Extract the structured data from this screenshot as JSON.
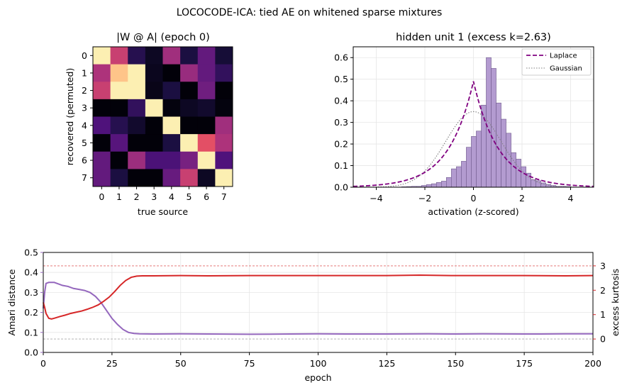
{
  "suptitle": "LOCOCODE-ICA: tied AE on whitened sparse mixtures",
  "colors": {
    "amari": "#9467bd",
    "kurtosis": "#d62728",
    "laplace": "#800080",
    "gaussian": "#7f7f7f",
    "hist_fill": "#b39bd0",
    "hist_edge": "#6f5a8c",
    "kurt_ref": "#d62728",
    "amari_ref": "#aaaaaa"
  },
  "chart_data": [
    {
      "type": "heatmap",
      "title": "|W @ A|  (epoch 0)",
      "xlabel": "true source",
      "ylabel": "recovered (permuted)",
      "x_ticks": [
        "0",
        "1",
        "2",
        "3",
        "4",
        "5",
        "6",
        "7"
      ],
      "y_ticks": [
        "0",
        "1",
        "2",
        "3",
        "4",
        "5",
        "6",
        "7"
      ],
      "colormap": "magma",
      "values": [
        [
          0.97,
          0.55,
          0.15,
          0.06,
          0.45,
          0.12,
          0.3,
          0.1
        ],
        [
          0.48,
          0.88,
          0.97,
          0.05,
          0.01,
          0.43,
          0.3,
          0.18
        ],
        [
          0.55,
          0.97,
          0.97,
          0.04,
          0.12,
          0.01,
          0.33,
          0.01
        ],
        [
          0.01,
          0.01,
          0.18,
          0.97,
          0.02,
          0.06,
          0.08,
          0.02
        ],
        [
          0.25,
          0.15,
          0.08,
          0.01,
          0.97,
          0.01,
          0.01,
          0.45
        ],
        [
          0.01,
          0.27,
          0.01,
          0.01,
          0.12,
          0.97,
          0.62,
          0.48
        ],
        [
          0.3,
          0.01,
          0.44,
          0.24,
          0.24,
          0.35,
          0.97,
          0.25
        ],
        [
          0.3,
          0.12,
          0.01,
          0.01,
          0.31,
          0.55,
          0.06,
          0.97
        ]
      ]
    },
    {
      "type": "bar",
      "title": "hidden unit 1  (excess k=2.63)",
      "xlabel": "activation (z-scored)",
      "ylabel": "",
      "xlim": [
        -4.95,
        4.95
      ],
      "ylim": [
        0,
        0.65
      ],
      "x_ticks": [
        -4,
        -2,
        0,
        2,
        4
      ],
      "y_ticks": [
        0.0,
        0.1,
        0.2,
        0.3,
        0.4,
        0.5,
        0.6
      ],
      "x_tick_labels": [
        "−4",
        "−2",
        "0",
        "2",
        "4"
      ],
      "y_tick_labels": [
        "0.0",
        "0.1",
        "0.2",
        "0.3",
        "0.4",
        "0.5",
        "0.6"
      ],
      "grid": true,
      "legend_position": "top-right",
      "histogram": {
        "bin_start": -2.96,
        "bin_width": 0.205,
        "densities": [
          0.002,
          0.003,
          0.004,
          0.004,
          0.008,
          0.012,
          0.016,
          0.022,
          0.028,
          0.045,
          0.085,
          0.095,
          0.12,
          0.185,
          0.235,
          0.26,
          0.38,
          0.6,
          0.55,
          0.39,
          0.315,
          0.25,
          0.16,
          0.13,
          0.095,
          0.065,
          0.035,
          0.03,
          0.02,
          0.013,
          0.008,
          0.004,
          0.004,
          0.003
        ]
      },
      "series": [
        {
          "name": "Laplace",
          "kind": "laplace",
          "peak": 0.49,
          "scale": 1.02,
          "style": "dashed"
        },
        {
          "name": "Gaussian",
          "kind": "gaussian",
          "mean": 0,
          "std": 1.14,
          "style": "dotted"
        }
      ]
    },
    {
      "type": "line",
      "xlabel": "epoch",
      "ylabel": "Amari distance",
      "y2label": "excess kurtosis",
      "xlim": [
        0,
        200
      ],
      "ylim": [
        0,
        0.5
      ],
      "y2lim": [
        -0.55,
        3.55
      ],
      "x_ticks": [
        0,
        25,
        50,
        75,
        100,
        125,
        150,
        175,
        200
      ],
      "y_ticks": [
        0.0,
        0.1,
        0.2,
        0.3,
        0.4,
        0.5
      ],
      "y_tick_labels": [
        "0.0",
        "0.1",
        "0.2",
        "0.3",
        "0.4",
        "0.5"
      ],
      "y2_ticks": [
        0,
        1,
        2,
        3
      ],
      "grid": true,
      "reference_lines": [
        {
          "axis": "y2",
          "value": 3.0,
          "style": "dashed"
        },
        {
          "axis": "y2",
          "value": 0.0,
          "style": "dashed"
        }
      ],
      "series": [
        {
          "name": "Amari distance",
          "axis": "y",
          "points": [
            [
              0,
              0.22
            ],
            [
              0.5,
              0.3
            ],
            [
              1,
              0.345
            ],
            [
              2,
              0.35
            ],
            [
              3,
              0.35
            ],
            [
              4,
              0.35
            ],
            [
              5,
              0.345
            ],
            [
              7,
              0.335
            ],
            [
              9,
              0.33
            ],
            [
              11,
              0.32
            ],
            [
              13,
              0.315
            ],
            [
              15,
              0.31
            ],
            [
              17,
              0.3
            ],
            [
              19,
              0.28
            ],
            [
              21,
              0.25
            ],
            [
              23,
              0.21
            ],
            [
              25,
              0.17
            ],
            [
              27,
              0.14
            ],
            [
              29,
              0.115
            ],
            [
              31,
              0.1
            ],
            [
              33,
              0.095
            ],
            [
              35,
              0.093
            ],
            [
              40,
              0.092
            ],
            [
              50,
              0.093
            ],
            [
              60,
              0.092
            ],
            [
              75,
              0.091
            ],
            [
              90,
              0.092
            ],
            [
              100,
              0.093
            ],
            [
              110,
              0.092
            ],
            [
              125,
              0.092
            ],
            [
              140,
              0.093
            ],
            [
              150,
              0.092
            ],
            [
              160,
              0.093
            ],
            [
              175,
              0.092
            ],
            [
              190,
              0.093
            ],
            [
              200,
              0.093
            ]
          ]
        },
        {
          "name": "excess kurtosis",
          "axis": "y2",
          "points": [
            [
              0,
              1.5
            ],
            [
              0.5,
              1.3
            ],
            [
              1,
              1.05
            ],
            [
              2,
              0.85
            ],
            [
              3,
              0.82
            ],
            [
              4,
              0.85
            ],
            [
              6,
              0.92
            ],
            [
              8,
              0.98
            ],
            [
              10,
              1.05
            ],
            [
              12,
              1.1
            ],
            [
              14,
              1.15
            ],
            [
              16,
              1.22
            ],
            [
              18,
              1.3
            ],
            [
              20,
              1.4
            ],
            [
              22,
              1.55
            ],
            [
              24,
              1.72
            ],
            [
              26,
              1.95
            ],
            [
              28,
              2.2
            ],
            [
              30,
              2.4
            ],
            [
              32,
              2.53
            ],
            [
              34,
              2.58
            ],
            [
              36,
              2.59
            ],
            [
              40,
              2.59
            ],
            [
              50,
              2.6
            ],
            [
              60,
              2.59
            ],
            [
              75,
              2.6
            ],
            [
              90,
              2.6
            ],
            [
              100,
              2.6
            ],
            [
              110,
              2.6
            ],
            [
              125,
              2.6
            ],
            [
              137,
              2.62
            ],
            [
              150,
              2.6
            ],
            [
              160,
              2.6
            ],
            [
              175,
              2.6
            ],
            [
              190,
              2.59
            ],
            [
              200,
              2.6
            ]
          ]
        }
      ]
    }
  ]
}
